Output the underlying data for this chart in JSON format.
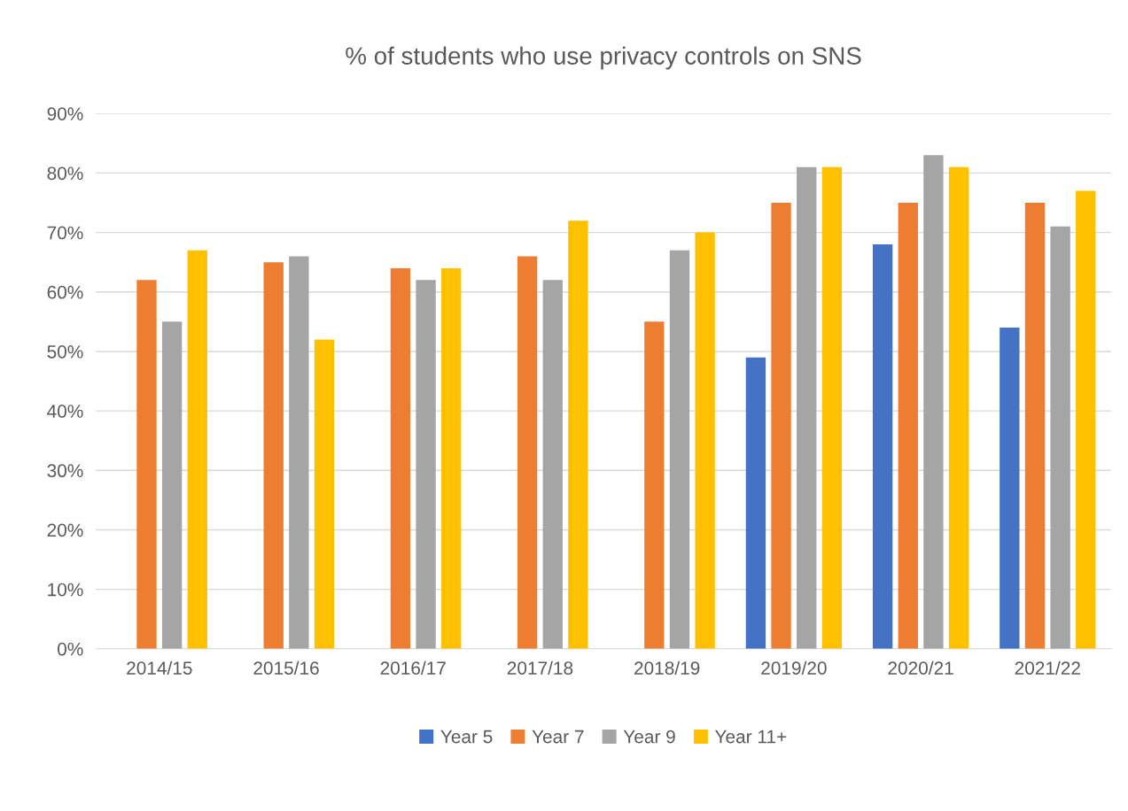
{
  "chart_data": {
    "type": "bar",
    "title": "% of students who use privacy controls on SNS",
    "categories": [
      "2014/15",
      "2015/16",
      "2016/17",
      "2017/18",
      "2018/19",
      "2019/20",
      "2020/21",
      "2021/22"
    ],
    "series": [
      {
        "name": "Year 5",
        "color": "#4472c4",
        "values": [
          null,
          null,
          null,
          null,
          null,
          49,
          68,
          54
        ]
      },
      {
        "name": "Year 7",
        "color": "#ed7d31",
        "values": [
          62,
          65,
          64,
          66,
          55,
          75,
          75,
          75
        ]
      },
      {
        "name": "Year 9",
        "color": "#a5a5a5",
        "values": [
          55,
          66,
          62,
          62,
          67,
          81,
          83,
          71
        ]
      },
      {
        "name": "Year 11+",
        "color": "#ffc000",
        "values": [
          67,
          52,
          64,
          72,
          70,
          81,
          81,
          77
        ]
      }
    ],
    "ylim": [
      0,
      90
    ],
    "yticks": [
      {
        "value": 0,
        "label": "0%"
      },
      {
        "value": 10,
        "label": "10%"
      },
      {
        "value": 20,
        "label": "20%"
      },
      {
        "value": 30,
        "label": "30%"
      },
      {
        "value": 40,
        "label": "40%"
      },
      {
        "value": 50,
        "label": "50%"
      },
      {
        "value": 60,
        "label": "60%"
      },
      {
        "value": 70,
        "label": "70%"
      },
      {
        "value": 80,
        "label": "80%"
      },
      {
        "value": 90,
        "label": "90%"
      }
    ],
    "grid": "y",
    "legend": "bottom"
  }
}
